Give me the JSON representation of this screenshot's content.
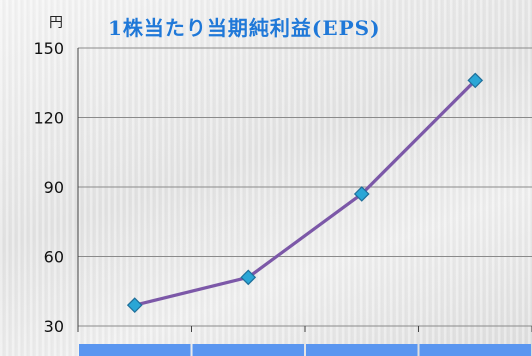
{
  "chart_data": {
    "type": "line",
    "title": "1株当たり当期純利益(EPS)",
    "unit_label": "円",
    "xlabel": "",
    "ylabel": "",
    "ylim": [
      30,
      150
    ],
    "yticks": [
      "150",
      "120",
      "90",
      "60",
      "30"
    ],
    "ytick_values": [
      150,
      120,
      90,
      60,
      30
    ],
    "categories": [
      "",
      "",
      "",
      ""
    ],
    "series": [
      {
        "values": [
          39,
          51,
          87,
          136
        ]
      }
    ],
    "grid": true,
    "legend": "none"
  },
  "colors": {
    "line": "#7c58a8",
    "marker": "#2aa6d6",
    "marker_edge": "#1f6f9a",
    "title": "#1f78d8",
    "axis": "#444444",
    "category_band": "#5a96f0"
  }
}
